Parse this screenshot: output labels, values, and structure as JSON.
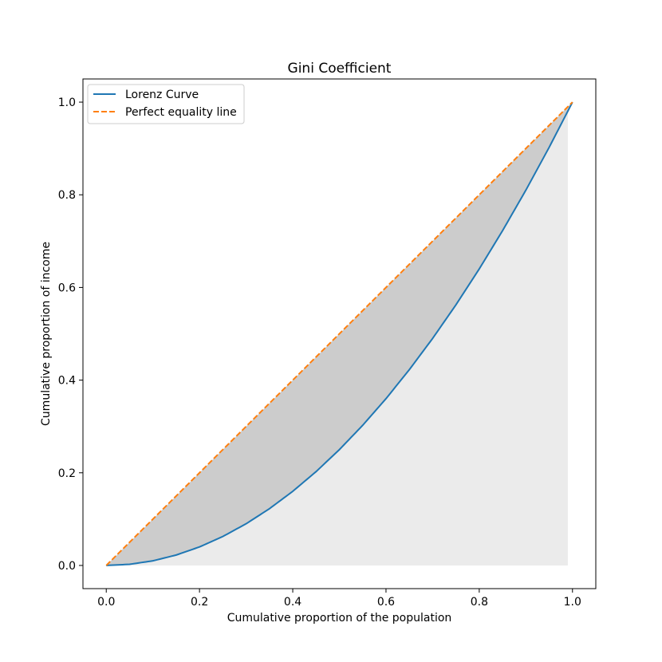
{
  "chart_data": {
    "type": "line",
    "title": "Gini Coefficient",
    "xlabel": "Cumulative proportion of the population",
    "ylabel": "Cumulative proportion of income",
    "xlim": [
      -0.05,
      1.05
    ],
    "ylim": [
      -0.05,
      1.05
    ],
    "xticks": [
      0.0,
      0.2,
      0.4,
      0.6,
      0.8,
      1.0
    ],
    "yticks": [
      0.0,
      0.2,
      0.4,
      0.6,
      0.8,
      1.0
    ],
    "xtick_labels": [
      "0.0",
      "0.2",
      "0.4",
      "0.6",
      "0.8",
      "1.0"
    ],
    "ytick_labels": [
      "0.0",
      "0.2",
      "0.4",
      "0.6",
      "0.8",
      "1.0"
    ],
    "grid": false,
    "legend": {
      "placement": "upper-left",
      "entries": [
        "Lorenz Curve",
        "Perfect equality line"
      ]
    },
    "series": [
      {
        "name": "Lorenz Curve",
        "color": "#1f77b4",
        "style": "solid",
        "x": [
          0.0,
          0.05,
          0.1,
          0.15,
          0.2,
          0.25,
          0.3,
          0.35,
          0.4,
          0.45,
          0.5,
          0.55,
          0.6,
          0.65,
          0.7,
          0.75,
          0.8,
          0.85,
          0.9,
          0.95,
          1.0
        ],
        "y": [
          0.0,
          0.0025,
          0.01,
          0.0225,
          0.04,
          0.0625,
          0.09,
          0.1225,
          0.16,
          0.2025,
          0.25,
          0.3025,
          0.36,
          0.4225,
          0.49,
          0.5625,
          0.64,
          0.7225,
          0.81,
          0.9025,
          1.0
        ]
      },
      {
        "name": "Perfect equality line",
        "color": "#ff7f0e",
        "style": "dashed",
        "x": [
          0.0,
          1.0
        ],
        "y": [
          0.0,
          1.0
        ]
      }
    ],
    "fills": [
      {
        "between": "Perfect equality line and Lorenz Curve",
        "color": "#cccccc"
      },
      {
        "between": "Lorenz Curve and zero",
        "x_end": 0.99,
        "color": "#ebebeb"
      }
    ]
  }
}
